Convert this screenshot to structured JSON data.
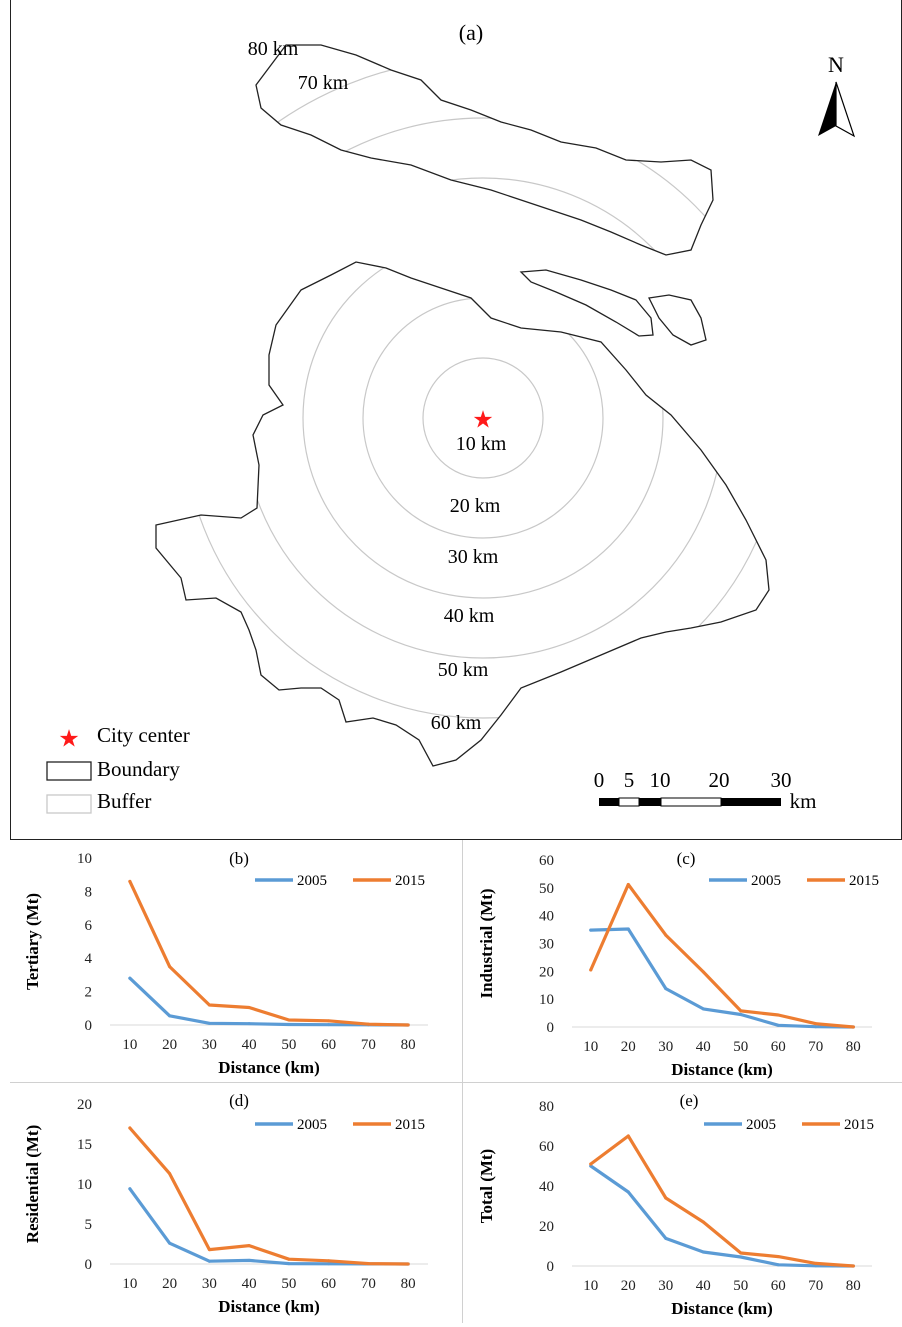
{
  "map": {
    "panel_label": "(a)",
    "north_label": "N",
    "center_label": "City center",
    "rings": [
      "10 km",
      "20 km",
      "30 km",
      "40 km",
      "50 km",
      "60 km",
      "70 km",
      "80 km"
    ],
    "legend": {
      "city_center": "City center",
      "boundary": "Boundary",
      "buffer": "Buffer"
    },
    "scale_ticks": [
      "0",
      "5",
      "10",
      "20",
      "30"
    ],
    "scale_unit": "km",
    "colors": {
      "star": "#ff1a1a",
      "boundary": "#222222",
      "buffer": "#c8c8c8"
    }
  },
  "chart_data": [
    {
      "type": "line",
      "panel_label": "(b)",
      "xlabel": "Distance (km)",
      "ylabel": "Tertiary (Mt)",
      "x": [
        10,
        20,
        30,
        40,
        50,
        60,
        70,
        80
      ],
      "ylim": [
        0,
        10
      ],
      "yticks": [
        0,
        2,
        4,
        6,
        8,
        10
      ],
      "series": [
        {
          "name": "2005",
          "color": "#5b9bd5",
          "values": [
            2.8,
            0.55,
            0.1,
            0.08,
            0.03,
            0.02,
            0.01,
            0.0
          ]
        },
        {
          "name": "2015",
          "color": "#ed7d31",
          "values": [
            8.6,
            3.5,
            1.2,
            1.05,
            0.3,
            0.25,
            0.05,
            0.0
          ]
        }
      ],
      "legend_position": "top-right",
      "grid": false
    },
    {
      "type": "line",
      "panel_label": "(c)",
      "xlabel": "Distance (km)",
      "ylabel": "Industrial (Mt)",
      "x": [
        10,
        20,
        30,
        40,
        50,
        60,
        70,
        80
      ],
      "ylim": [
        0,
        60
      ],
      "yticks": [
        0,
        10,
        20,
        30,
        40,
        50,
        60
      ],
      "series": [
        {
          "name": "2005",
          "color": "#5b9bd5",
          "values": [
            34.8,
            35.2,
            13.8,
            6.5,
            4.5,
            0.6,
            0.1,
            0.0
          ]
        },
        {
          "name": "2015",
          "color": "#ed7d31",
          "values": [
            20.5,
            51.2,
            33.0,
            19.8,
            5.8,
            4.3,
            1.2,
            0.0
          ]
        }
      ],
      "legend_position": "top-right",
      "grid": false
    },
    {
      "type": "line",
      "panel_label": "(d)",
      "xlabel": "Distance (km)",
      "ylabel": "Residential (Mt)",
      "x": [
        10,
        20,
        30,
        40,
        50,
        60,
        70,
        80
      ],
      "ylim": [
        0,
        20
      ],
      "yticks": [
        0,
        5,
        10,
        15,
        20
      ],
      "series": [
        {
          "name": "2005",
          "color": "#5b9bd5",
          "values": [
            9.4,
            2.6,
            0.35,
            0.45,
            0.05,
            0.03,
            0.01,
            0.0
          ]
        },
        {
          "name": "2015",
          "color": "#ed7d31",
          "values": [
            17.0,
            11.3,
            1.8,
            2.3,
            0.6,
            0.4,
            0.05,
            0.0
          ]
        }
      ],
      "legend_position": "top-right",
      "grid": false
    },
    {
      "type": "line",
      "panel_label": "(e)",
      "xlabel": "Distance (km)",
      "ylabel": "Total (Mt)",
      "x": [
        10,
        20,
        30,
        40,
        50,
        60,
        70,
        80
      ],
      "ylim": [
        0,
        80
      ],
      "yticks": [
        0,
        20,
        40,
        60,
        80
      ],
      "series": [
        {
          "name": "2005",
          "color": "#5b9bd5",
          "values": [
            50.0,
            37.0,
            13.8,
            7.0,
            4.5,
            0.6,
            0.1,
            0.0
          ]
        },
        {
          "name": "2015",
          "color": "#ed7d31",
          "values": [
            51.0,
            65.0,
            34.0,
            22.0,
            6.5,
            4.7,
            1.3,
            0.0
          ]
        }
      ],
      "legend_position": "top-right",
      "grid": false
    }
  ]
}
